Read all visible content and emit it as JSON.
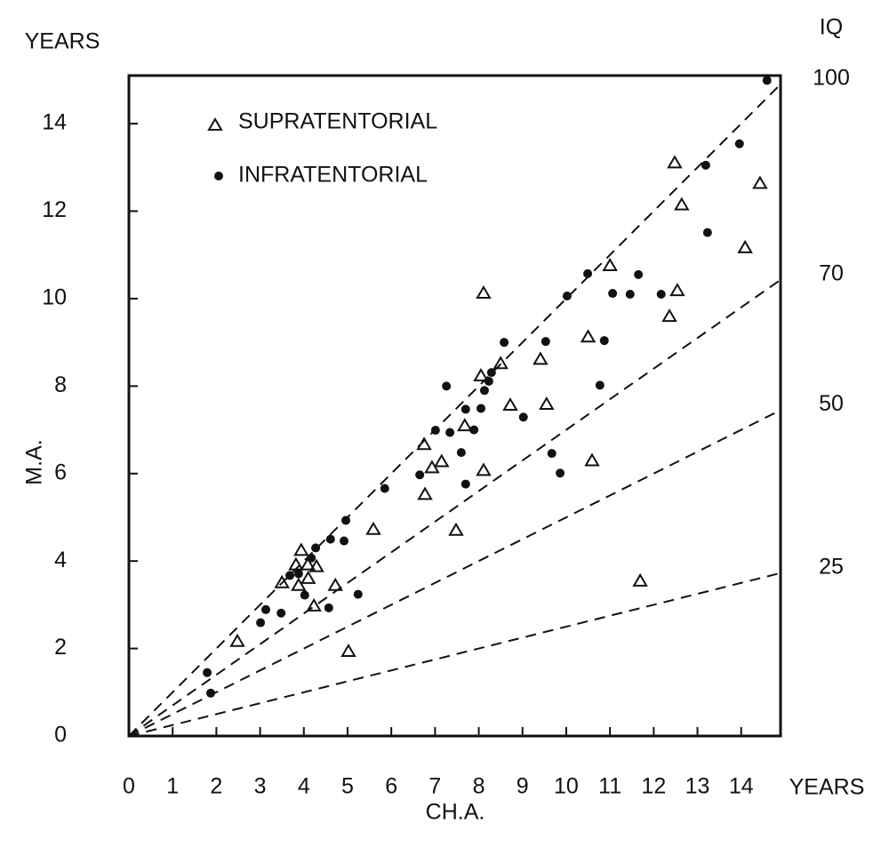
{
  "chart_data": {
    "type": "scatter",
    "ylabel_top": "YEARS",
    "y2label": "IQ",
    "ylabel": "M.A.",
    "xlabel": "CH.A.",
    "xunit": "YEARS",
    "xlim": [
      0,
      14.9
    ],
    "ylim": [
      0,
      15.1
    ],
    "xticks": [
      0,
      1,
      2,
      3,
      4,
      5,
      6,
      7,
      8,
      9,
      10,
      11,
      12,
      13,
      14
    ],
    "yticks": [
      0,
      2,
      4,
      6,
      8,
      10,
      12,
      14
    ],
    "legend": "upper-left",
    "iq_lines": [
      100,
      70,
      50,
      25
    ],
    "series": [
      {
        "name": "SUPRATENTORIAL",
        "marker": "triangle",
        "color": "#111111",
        "x": [
          2.48,
          3.5,
          3.94,
          3.82,
          4.09,
          4.29,
          3.88,
          4.1,
          4.23,
          4.72,
          5.02,
          5.59,
          6.77,
          6.75,
          6.93,
          7.15,
          7.48,
          7.68,
          8.11,
          8.05,
          8.11,
          8.5,
          8.72,
          9.41,
          9.55,
          10.5,
          10.59,
          11.0,
          11.69,
          12.36,
          12.54,
          12.48,
          12.64,
          14.09,
          14.43
        ],
        "values": [
          2.16,
          3.5,
          4.24,
          3.91,
          3.91,
          3.87,
          3.44,
          3.6,
          2.97,
          3.44,
          1.93,
          4.72,
          5.52,
          6.66,
          6.13,
          6.27,
          4.7,
          7.09,
          10.12,
          8.23,
          6.07,
          8.51,
          7.56,
          8.61,
          7.58,
          9.12,
          6.29,
          10.75,
          3.54,
          9.59,
          10.18,
          13.1,
          12.14,
          11.16,
          12.63
        ]
      },
      {
        "name": "INFRATENTORIAL",
        "marker": "dot",
        "color": "#111111",
        "x": [
          1.79,
          1.87,
          3.01,
          3.13,
          3.48,
          3.68,
          3.88,
          4.17,
          4.27,
          4.02,
          4.57,
          4.61,
          4.92,
          4.96,
          5.24,
          5.85,
          6.65,
          7.26,
          7.01,
          7.34,
          7.6,
          7.7,
          7.7,
          7.89,
          8.05,
          8.13,
          8.23,
          8.29,
          8.58,
          9.02,
          9.53,
          9.67,
          9.86,
          10.02,
          10.49,
          10.87,
          10.77,
          11.06,
          11.46,
          11.65,
          12.17,
          13.23,
          13.19,
          13.96,
          14.59
        ],
        "values": [
          1.45,
          0.98,
          2.59,
          2.89,
          2.81,
          3.67,
          3.71,
          4.07,
          4.3,
          3.22,
          2.93,
          4.5,
          4.46,
          4.93,
          3.24,
          5.66,
          5.97,
          8.0,
          6.99,
          6.94,
          6.48,
          5.76,
          7.47,
          7.0,
          7.49,
          7.9,
          8.11,
          8.31,
          9.0,
          7.29,
          9.02,
          6.46,
          6.01,
          10.06,
          10.57,
          9.04,
          8.02,
          10.12,
          10.1,
          10.55,
          10.1,
          11.51,
          13.05,
          13.54,
          14.99
        ]
      }
    ]
  }
}
